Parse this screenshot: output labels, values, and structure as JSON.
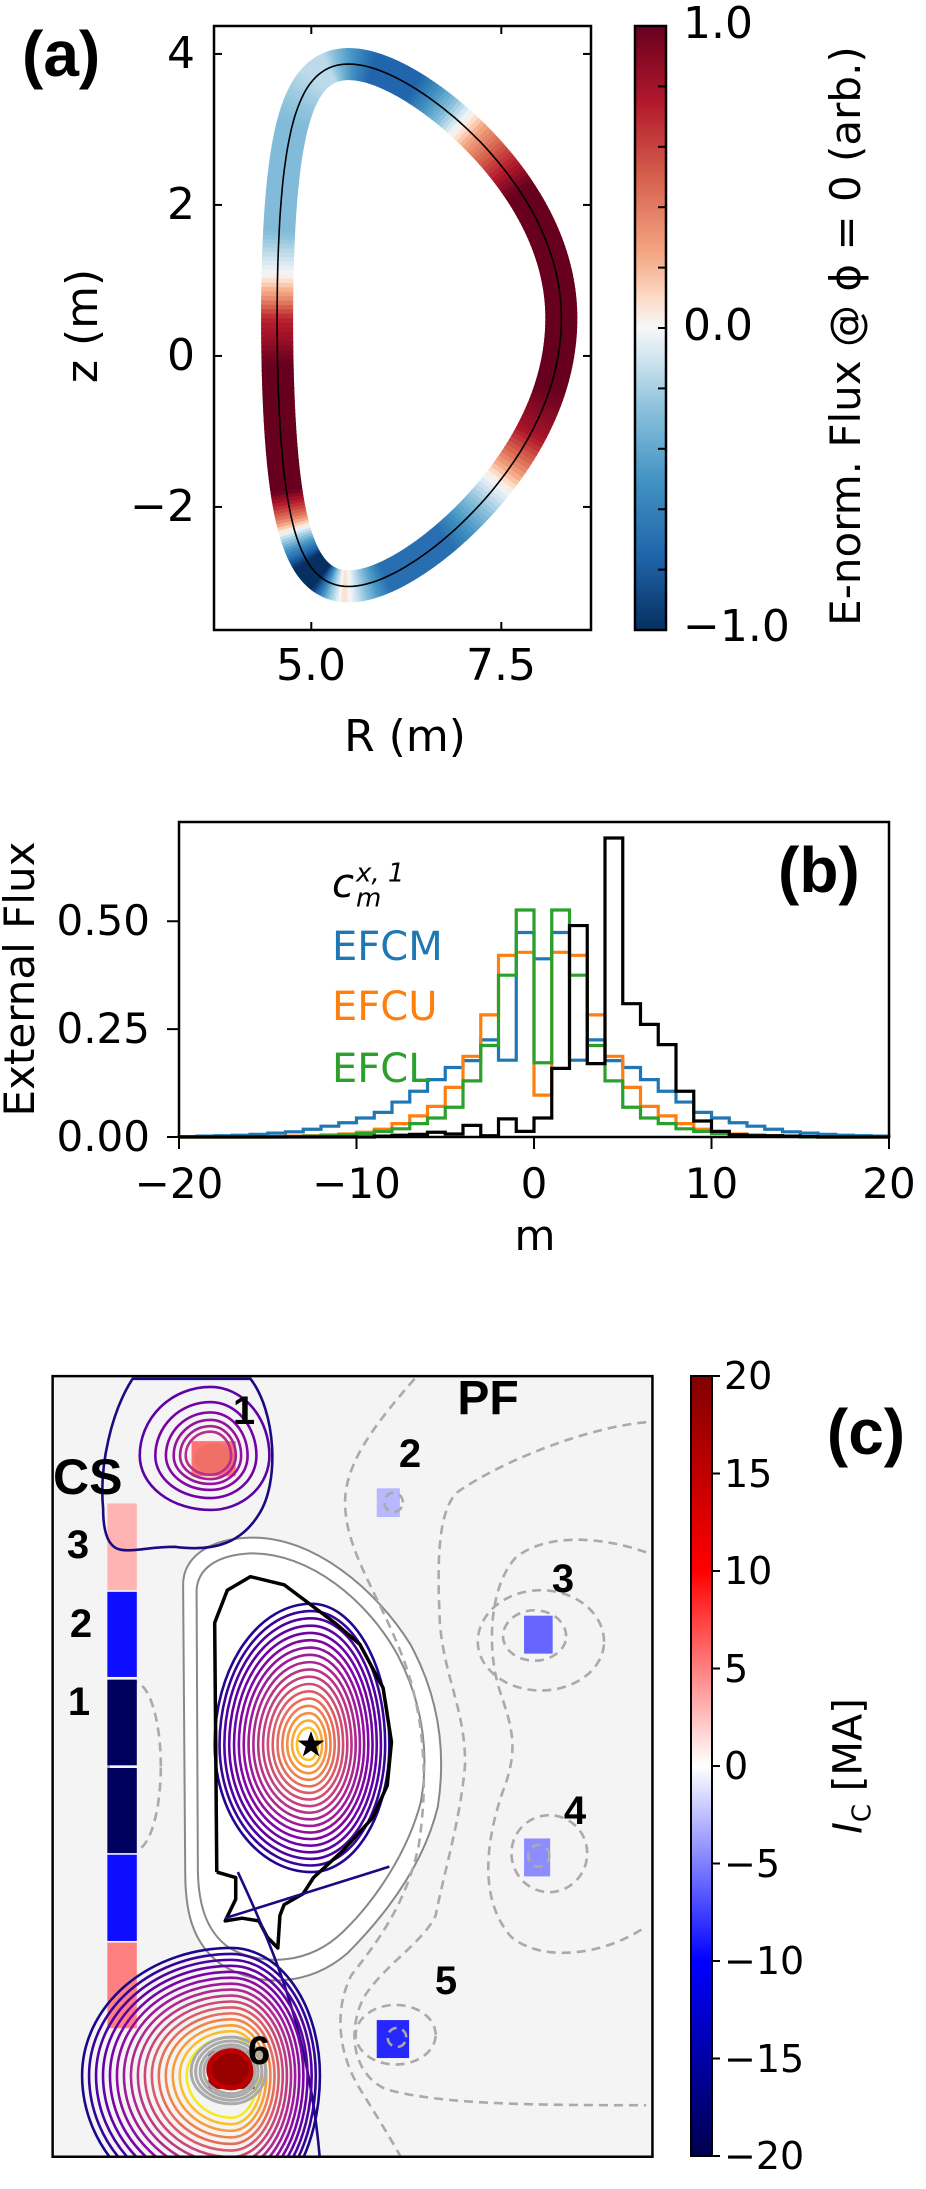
{
  "chart_data": [
    {
      "type": "line",
      "panel_label": "(a)",
      "xlabel": "R (m)",
      "ylabel": "z (m)",
      "xlim": [
        3.72,
        8.68
      ],
      "ylim": [
        -3.63,
        4.37
      ],
      "xticks": [
        {
          "value": 5.0,
          "label": "5.0"
        },
        {
          "value": 7.5,
          "label": "7.5"
        }
      ],
      "yticks": [
        {
          "value": -2,
          "label": "−2"
        },
        {
          "value": 0,
          "label": "0"
        },
        {
          "value": 2,
          "label": "2"
        },
        {
          "value": 4,
          "label": "4"
        }
      ],
      "colorbar": {
        "label": "E-norm. Flux @ ϕ = 0 (arb.)",
        "colormap": "RdBu_r",
        "range": [
          -1,
          1
        ],
        "ticks": [
          {
            "value": 1.0,
            "label": "1.0"
          },
          {
            "value": 0.0,
            "label": "0.0"
          },
          {
            "value": -1.0,
            "label": "−1.0"
          }
        ]
      },
      "flux_vs_poloidal_angle": {
        "angle_deg": [
          0,
          30,
          45,
          50,
          55,
          65,
          80,
          90,
          100,
          110,
          130,
          160,
          170,
          175,
          180,
          190,
          220,
          228,
          232,
          238,
          245,
          255,
          262,
          268,
          275,
          285,
          305,
          315,
          322,
          328,
          335,
          345,
          360
        ],
        "value": [
          1,
          1,
          0.3,
          0,
          -0.3,
          -0.75,
          -0.75,
          -0.45,
          -0.15,
          -0.15,
          -0.3,
          -0.3,
          0,
          0.3,
          0.7,
          1,
          1,
          0.4,
          0,
          -0.5,
          -1,
          -1,
          -0.3,
          0.1,
          -0.2,
          -0.7,
          -0.7,
          -0.3,
          0,
          0.4,
          0.8,
          1,
          1
        ]
      }
    },
    {
      "type": "line",
      "step": true,
      "panel_label": "(b)",
      "xlabel": "m",
      "ylabel": "External Flux",
      "xlim": [
        -20,
        20
      ],
      "ylim": [
        0,
        0.73
      ],
      "xticks": [
        {
          "value": -20,
          "label": "−20"
        },
        {
          "value": -10,
          "label": "−10"
        },
        {
          "value": 0,
          "label": "0"
        },
        {
          "value": 10,
          "label": "10"
        },
        {
          "value": 20,
          "label": "20"
        }
      ],
      "yticks": [
        {
          "value": 0,
          "label": "0.00"
        },
        {
          "value": 0.25,
          "label": "0.25"
        },
        {
          "value": 0.5,
          "label": "0.50"
        }
      ],
      "grid": false,
      "legend_placement": "upper-left",
      "m": [
        -20,
        -19,
        -18,
        -17,
        -16,
        -15,
        -14,
        -13,
        -12,
        -11,
        -10,
        -9,
        -8,
        -7,
        -6,
        -5,
        -4,
        -3,
        -2,
        -1,
        0,
        1,
        2,
        3,
        4,
        5,
        6,
        7,
        8,
        9,
        10,
        11,
        12,
        13,
        14,
        15,
        16,
        17,
        18,
        19
      ],
      "series": [
        {
          "name": "c",
          "name_sub": "m",
          "name_sup": "x, 1",
          "color": "#000000",
          "values": [
            0,
            0,
            0,
            0,
            0,
            0,
            0,
            0,
            0,
            0,
            0,
            0.002,
            0.004,
            0.006,
            0.011,
            0.007,
            0.027,
            0.003,
            0.042,
            0.013,
            0.044,
            0.159,
            0.49,
            0.17,
            0.693,
            0.309,
            0.261,
            0.214,
            0.106,
            0.037,
            0.013,
            0.005,
            0.003,
            0.003,
            0.002,
            0.001,
            0,
            0,
            0,
            0
          ]
        },
        {
          "name": "EFCM",
          "color": "#1f77b4",
          "values": [
            0.001,
            0.002,
            0.003,
            0.004,
            0.006,
            0.009,
            0.012,
            0.018,
            0.025,
            0.033,
            0.044,
            0.057,
            0.081,
            0.106,
            0.133,
            0.161,
            0.177,
            0.225,
            0.178,
            0.474,
            0.413,
            0.474,
            0.178,
            0.225,
            0.177,
            0.161,
            0.133,
            0.106,
            0.081,
            0.057,
            0.044,
            0.033,
            0.025,
            0.018,
            0.012,
            0.009,
            0.006,
            0.004,
            0.003,
            0.002
          ]
        },
        {
          "name": "EFCU",
          "color": "#ff7f0e",
          "values": [
            0,
            0,
            0,
            0,
            0,
            0.001,
            0.002,
            0.003,
            0.005,
            0.007,
            0.011,
            0.018,
            0.031,
            0.049,
            0.071,
            0.115,
            0.187,
            0.283,
            0.421,
            0.428,
            0.097,
            0.428,
            0.421,
            0.283,
            0.187,
            0.115,
            0.071,
            0.049,
            0.031,
            0.018,
            0.011,
            0.007,
            0.005,
            0.003,
            0.002,
            0.001,
            0,
            0,
            0,
            0
          ]
        },
        {
          "name": "EFCL",
          "color": "#2ca02c",
          "values": [
            0,
            0,
            0,
            0,
            0,
            0,
            0.001,
            0.002,
            0.003,
            0.005,
            0.008,
            0.013,
            0.019,
            0.031,
            0.044,
            0.069,
            0.13,
            0.212,
            0.375,
            0.526,
            0.172,
            0.526,
            0.375,
            0.212,
            0.13,
            0.069,
            0.044,
            0.031,
            0.019,
            0.013,
            0.008,
            0.005,
            0.003,
            0.002,
            0.001,
            0,
            0,
            0,
            0,
            0
          ]
        }
      ]
    },
    {
      "type": "heatmap",
      "panel_label": "(c)",
      "colorbar": {
        "label": "I",
        "label_sub": "C",
        "label_unit": "[MA]",
        "colormap": "seismic",
        "range": [
          -20,
          20
        ],
        "ticks": [
          {
            "value": 20,
            "label": "20"
          },
          {
            "value": 15,
            "label": "15"
          },
          {
            "value": 10,
            "label": "10"
          },
          {
            "value": 5,
            "label": "5"
          },
          {
            "value": 0,
            "label": "0"
          },
          {
            "value": -5,
            "label": "−5"
          },
          {
            "value": -10,
            "label": "−10"
          },
          {
            "value": -15,
            "label": "−15"
          },
          {
            "value": -20,
            "label": "−20"
          }
        ]
      },
      "group_labels": {
        "cs": "CS",
        "pf": "PF"
      },
      "cs_coils": [
        {
          "label": "3",
          "current_MA": 3
        },
        {
          "label": "2",
          "current_MA": -9.5
        },
        {
          "label": "1",
          "current_MA": -19
        },
        {
          "label": "",
          "current_MA": -19
        },
        {
          "label": "",
          "current_MA": -9.5
        },
        {
          "label": "",
          "current_MA": 5
        }
      ],
      "pf_coils": [
        {
          "label": "1",
          "current_MA": 5.5
        },
        {
          "label": "2",
          "current_MA": -2.8
        },
        {
          "label": "3",
          "current_MA": -6
        },
        {
          "label": "4",
          "current_MA": -4.5
        },
        {
          "label": "5",
          "current_MA": -8.5
        },
        {
          "label": "6",
          "current_MA": 18
        }
      ],
      "background_color": "#f4f4f4",
      "magnetic_axis_marker": "star-icon"
    }
  ]
}
